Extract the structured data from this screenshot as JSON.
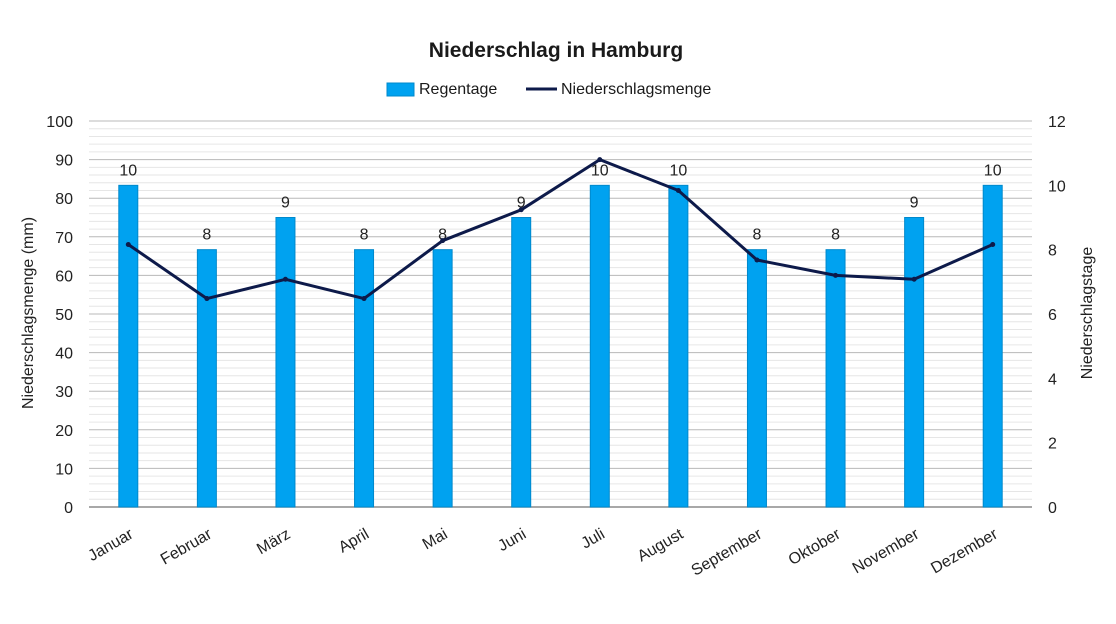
{
  "chart_data": {
    "type": "bar",
    "title": "Niederschlag in Hamburg",
    "categories": [
      "Januar",
      "Februar",
      "März",
      "April",
      "Mai",
      "Juni",
      "Juli",
      "August",
      "September",
      "Oktober",
      "November",
      "Dezember"
    ],
    "series": [
      {
        "name": "Regentage",
        "type": "bar",
        "axis": "right",
        "color": "#00a2f0",
        "values": [
          10,
          8,
          9,
          8,
          8,
          9,
          10,
          10,
          8,
          8,
          9,
          10
        ],
        "data_labels": [
          "10",
          "8",
          "9",
          "8",
          "8",
          "9",
          "10",
          "10",
          "8",
          "8",
          "9",
          "10"
        ]
      },
      {
        "name": "Niederschlagsmenge",
        "type": "line",
        "axis": "left",
        "color": "#0d1a4a",
        "values": [
          68,
          54,
          59,
          54,
          69,
          77,
          90,
          82,
          64,
          60,
          59,
          68
        ]
      }
    ],
    "ylabel": "Niederschlagsmenge (mm)",
    "ylabel_right": "Niederschlagstage",
    "ylim": [
      0,
      100
    ],
    "ylim_right": [
      0,
      12
    ],
    "yticks": [
      "0",
      "10",
      "20",
      "30",
      "40",
      "50",
      "60",
      "70",
      "80",
      "90",
      "100"
    ],
    "yticks_right": [
      "0",
      "2",
      "4",
      "6",
      "8",
      "10",
      "12"
    ],
    "grid": true,
    "legend_position": "top"
  }
}
